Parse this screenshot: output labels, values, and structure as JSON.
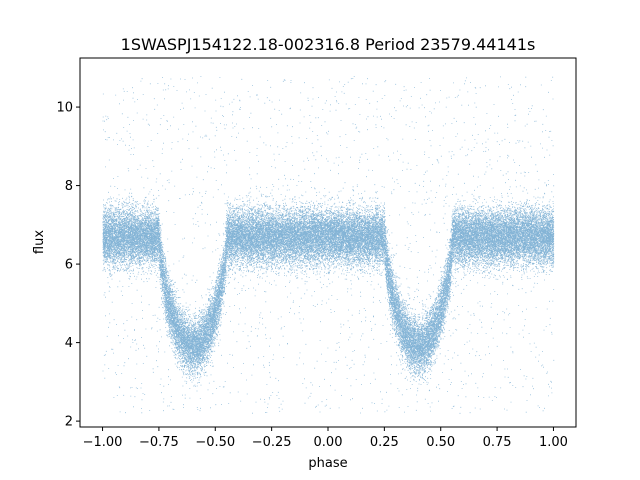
{
  "chart_data": {
    "type": "scatter",
    "title": "1SWASPJ154122.18-002316.8 Period 23579.44141s",
    "xlabel": "phase",
    "ylabel": "flux",
    "xlim": [
      -1.1,
      1.1
    ],
    "ylim": [
      1.85,
      11.25
    ],
    "xticks": [
      -1.0,
      -0.75,
      -0.5,
      -0.25,
      0.0,
      0.25,
      0.5,
      0.75,
      1.0
    ],
    "xtick_labels": [
      "−1.00",
      "−0.75",
      "−0.50",
      "−0.25",
      "0.00",
      "0.25",
      "0.50",
      "0.75",
      "1.00"
    ],
    "yticks": [
      2,
      4,
      6,
      8,
      10
    ],
    "ytick_labels": [
      "2",
      "4",
      "6",
      "8",
      "10"
    ],
    "grid": false,
    "legend": "none",
    "series": [
      {
        "color": "#1f77b4",
        "marker": "small dot",
        "approx_point_count": 50000,
        "phase_range": [
          -1.0,
          1.0
        ],
        "baseline_flux": 6.7,
        "typical_scatter": 0.5,
        "outer_flux_range": [
          2.2,
          10.8
        ],
        "eclipses": [
          {
            "center_phase": -0.6,
            "width_phase": 0.3,
            "min_flux": 3.9
          },
          {
            "center_phase": 0.4,
            "width_phase": 0.3,
            "min_flux": 3.9
          }
        ]
      }
    ]
  }
}
